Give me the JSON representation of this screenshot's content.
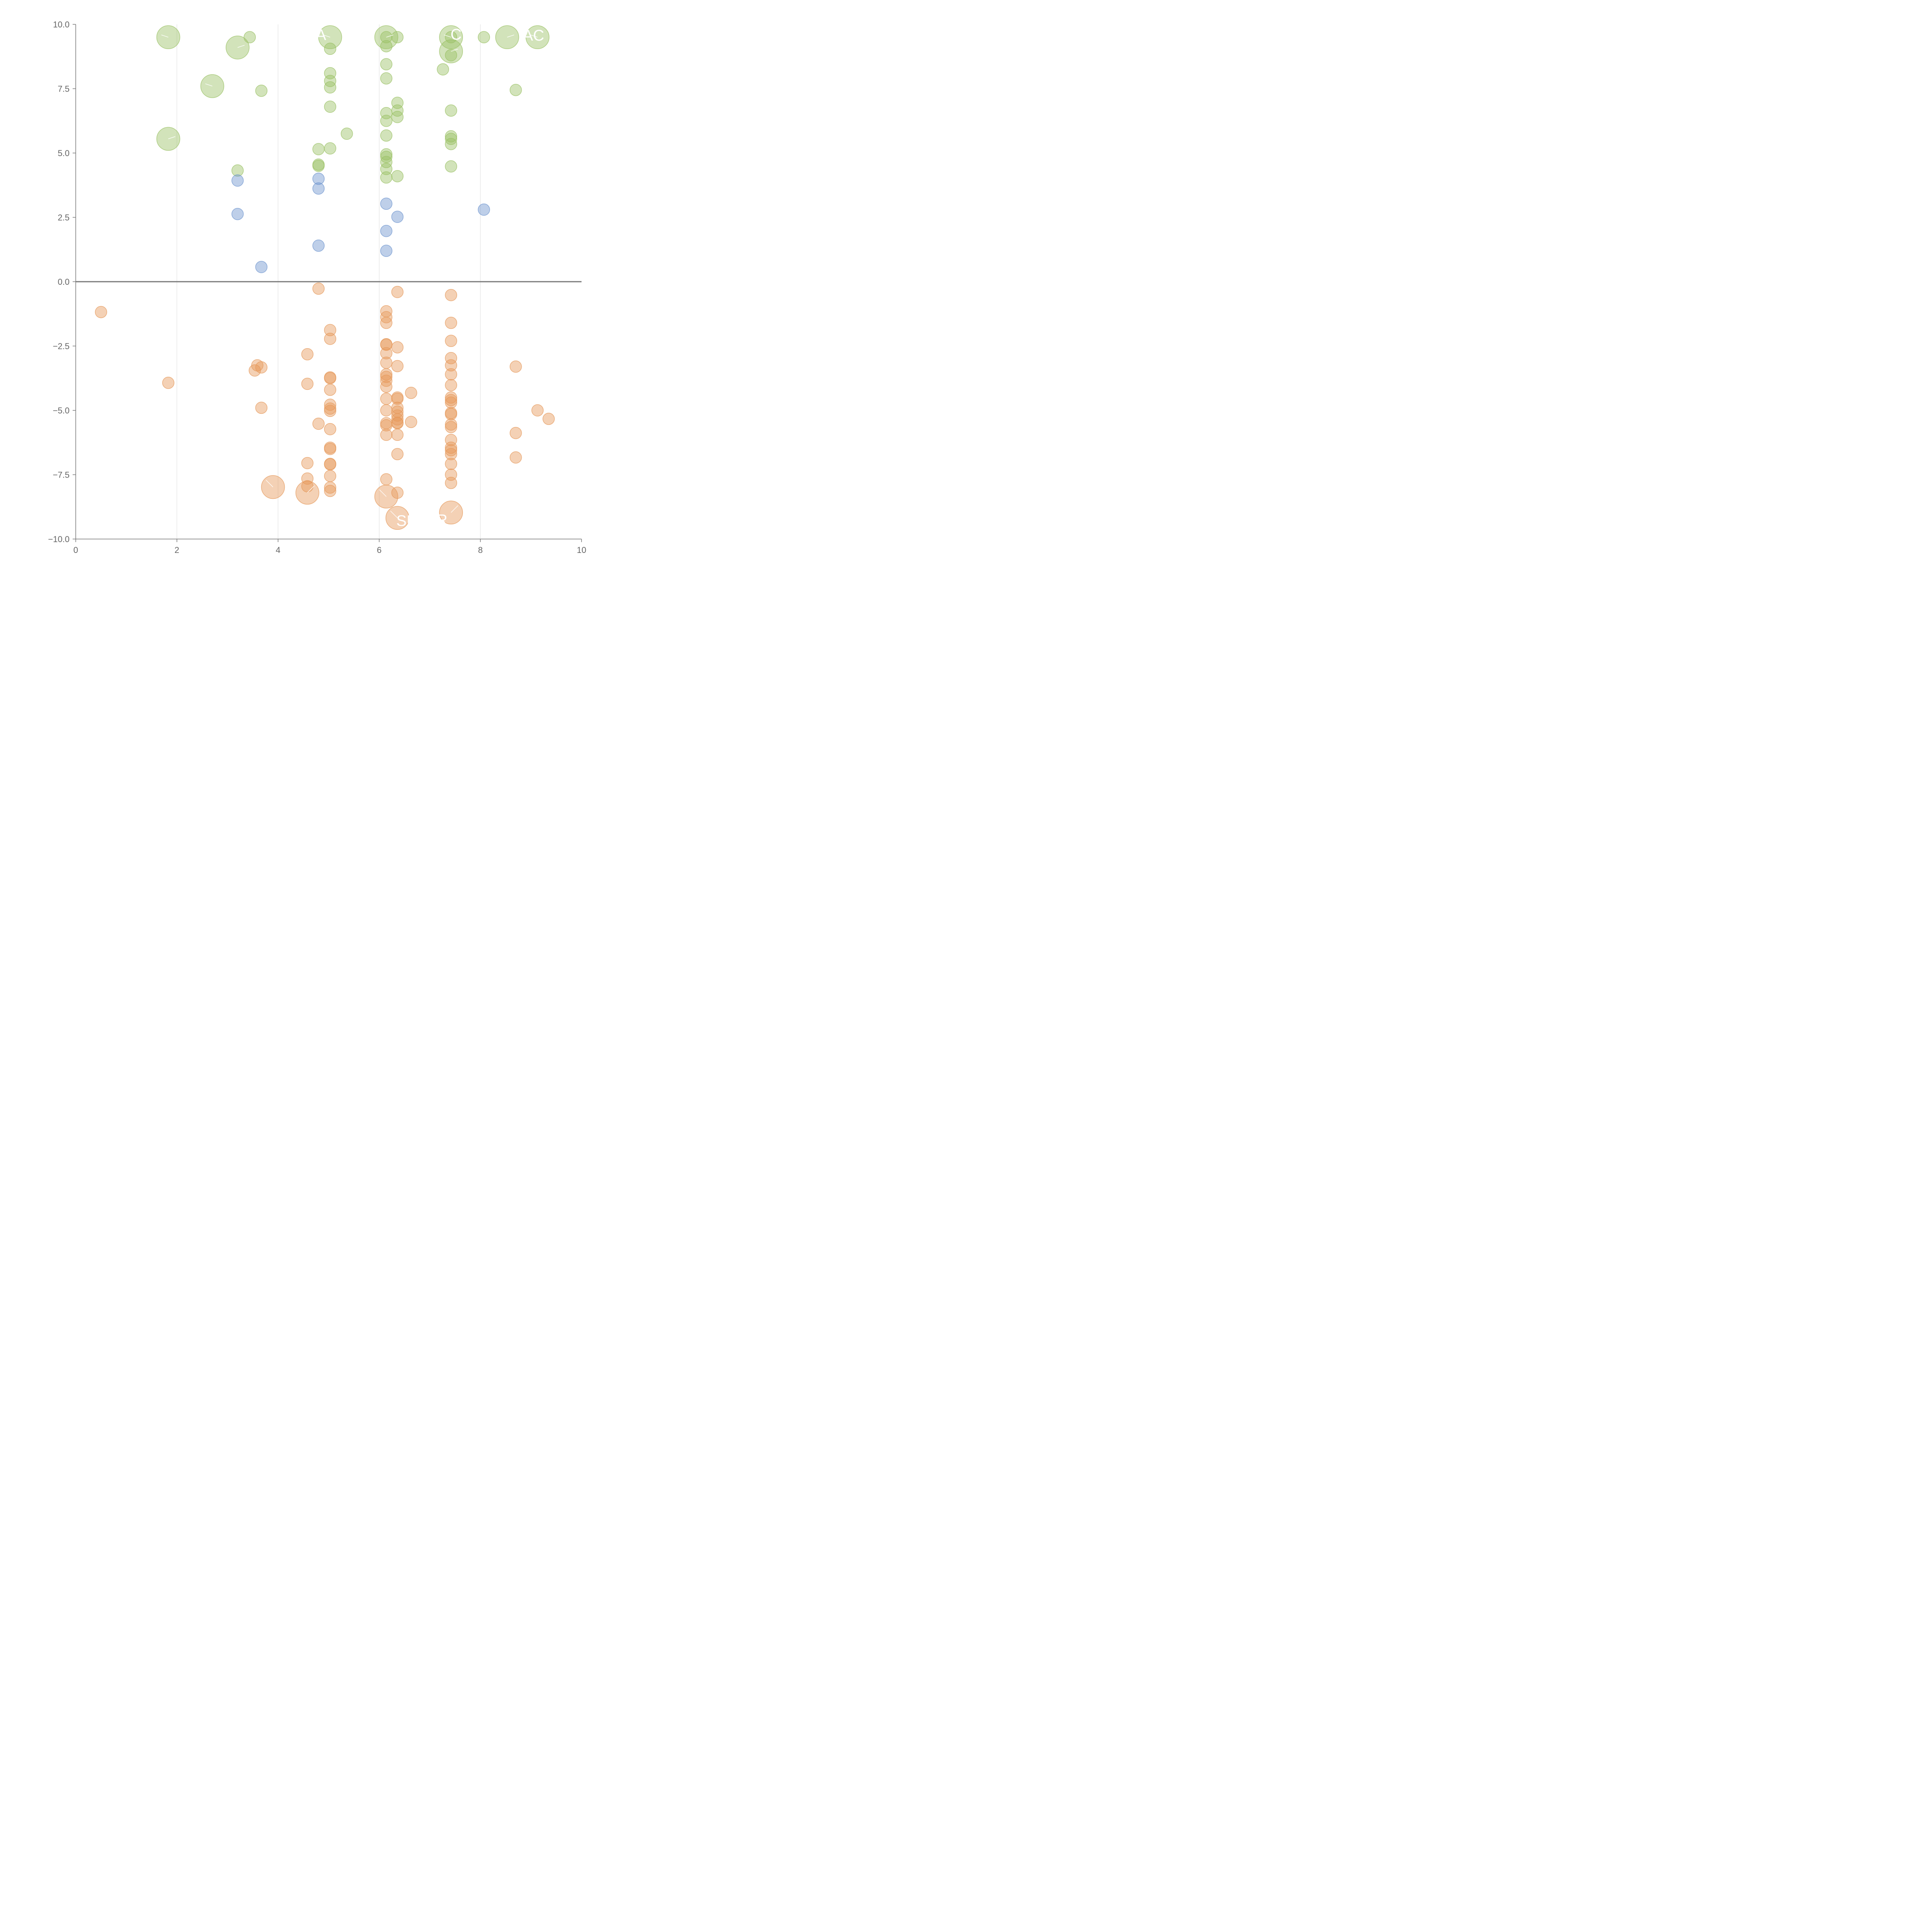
{
  "chart_data": {
    "type": "scatter",
    "title": "",
    "xlabel": "",
    "ylabel": "",
    "xlim": [
      0,
      10
    ],
    "ylim": [
      -10,
      10
    ],
    "x_ticks": [
      0,
      2,
      4,
      6,
      8,
      10
    ],
    "y_ticks": [
      -10,
      -7.5,
      -5,
      -2.5,
      0,
      2.5,
      5,
      7.5,
      10
    ],
    "x_tick_labels": [
      "0",
      "2",
      "4",
      "6",
      "8",
      "10"
    ],
    "y_tick_labels": [
      "−10.0",
      "−7.5",
      "−5.0",
      "−2.5",
      "0.0",
      "2.5",
      "5.0",
      "7.5",
      "10.0"
    ],
    "vertical_gridlines": [
      2,
      4,
      6,
      8
    ],
    "zero_line": 0,
    "colors": {
      "green": "#9bc265",
      "blue": "#6f95cf",
      "orange": "#e69a5c",
      "axis": "#777777",
      "grid": "#dddddd"
    },
    "series": [
      {
        "name": "green",
        "points": [
          [
            1.83,
            9.5,
            1
          ],
          [
            3.44,
            9.5,
            0
          ],
          [
            3.2,
            9.1,
            1
          ],
          [
            5.03,
            9.5,
            1
          ],
          [
            5.03,
            9.05,
            0
          ],
          [
            6.14,
            9.5,
            1
          ],
          [
            6.14,
            9.5,
            0
          ],
          [
            6.36,
            9.5,
            0
          ],
          [
            6.14,
            9.15,
            0
          ],
          [
            7.42,
            9.5,
            1
          ],
          [
            7.42,
            9.5,
            0
          ],
          [
            8.07,
            9.5,
            0
          ],
          [
            8.53,
            9.5,
            1
          ],
          [
            9.13,
            9.5,
            1
          ],
          [
            7.42,
            8.95,
            1
          ],
          [
            7.42,
            8.8,
            0
          ],
          [
            6.14,
            8.45,
            0
          ],
          [
            7.26,
            8.25,
            0
          ],
          [
            5.03,
            8.1,
            0
          ],
          [
            2.7,
            7.6,
            1
          ],
          [
            3.67,
            7.42,
            0
          ],
          [
            5.03,
            7.8,
            0
          ],
          [
            5.03,
            7.55,
            0
          ],
          [
            6.14,
            7.9,
            0
          ],
          [
            8.7,
            7.45,
            0
          ],
          [
            6.36,
            6.95,
            0
          ],
          [
            6.36,
            6.65,
            0
          ],
          [
            6.36,
            6.4,
            0
          ],
          [
            6.14,
            6.55,
            0
          ],
          [
            6.14,
            6.25,
            0
          ],
          [
            5.03,
            6.8,
            0
          ],
          [
            7.42,
            6.65,
            0
          ],
          [
            5.36,
            5.75,
            0
          ],
          [
            6.14,
            5.68,
            0
          ],
          [
            1.83,
            5.55,
            1
          ],
          [
            7.42,
            5.65,
            0
          ],
          [
            7.42,
            5.55,
            0
          ],
          [
            7.42,
            5.35,
            0
          ],
          [
            4.8,
            5.15,
            0
          ],
          [
            5.03,
            5.18,
            0
          ],
          [
            6.14,
            4.95,
            0
          ],
          [
            6.14,
            4.85,
            0
          ],
          [
            6.14,
            4.65,
            0
          ],
          [
            4.8,
            4.55,
            0
          ],
          [
            4.8,
            4.5,
            0
          ],
          [
            3.2,
            4.32,
            0
          ],
          [
            6.14,
            4.38,
            0
          ],
          [
            6.14,
            4.05,
            0
          ],
          [
            6.36,
            4.1,
            0
          ],
          [
            7.42,
            4.48,
            0
          ]
        ]
      },
      {
        "name": "blue",
        "points": [
          [
            3.2,
            3.93,
            0
          ],
          [
            4.8,
            4.0,
            0
          ],
          [
            4.8,
            3.62,
            0
          ],
          [
            3.2,
            2.63,
            0
          ],
          [
            6.14,
            3.03,
            0
          ],
          [
            6.36,
            2.52,
            0
          ],
          [
            8.07,
            2.8,
            0
          ],
          [
            6.14,
            1.97,
            0
          ],
          [
            4.8,
            1.4,
            0
          ],
          [
            6.14,
            1.2,
            0
          ],
          [
            3.67,
            0.57,
            0
          ]
        ]
      },
      {
        "name": "orange",
        "points": [
          [
            4.8,
            -0.27,
            0
          ],
          [
            6.36,
            -0.4,
            0
          ],
          [
            7.42,
            -0.52,
            0
          ],
          [
            0.5,
            -1.18,
            0
          ],
          [
            6.14,
            -1.15,
            0
          ],
          [
            6.14,
            -1.38,
            0
          ],
          [
            6.14,
            -1.6,
            0
          ],
          [
            7.42,
            -1.6,
            0
          ],
          [
            5.03,
            -1.88,
            0
          ],
          [
            5.03,
            -2.22,
            0
          ],
          [
            7.42,
            -2.3,
            0
          ],
          [
            6.14,
            -2.43,
            0
          ],
          [
            6.14,
            -2.45,
            0
          ],
          [
            6.36,
            -2.55,
            0
          ],
          [
            4.58,
            -2.82,
            0
          ],
          [
            6.14,
            -2.78,
            0
          ],
          [
            7.42,
            -2.97,
            0
          ],
          [
            3.59,
            -3.25,
            0
          ],
          [
            3.67,
            -3.33,
            0
          ],
          [
            3.54,
            -3.45,
            0
          ],
          [
            6.14,
            -3.15,
            0
          ],
          [
            6.36,
            -3.28,
            0
          ],
          [
            7.42,
            -3.25,
            0
          ],
          [
            8.7,
            -3.3,
            0
          ],
          [
            6.14,
            -3.6,
            0
          ],
          [
            6.14,
            -3.7,
            0
          ],
          [
            6.14,
            -3.85,
            0
          ],
          [
            7.42,
            -3.6,
            0
          ],
          [
            5.03,
            -3.72,
            0
          ],
          [
            5.03,
            -3.75,
            0
          ],
          [
            1.83,
            -3.93,
            0
          ],
          [
            4.58,
            -3.97,
            0
          ],
          [
            6.14,
            -4.08,
            0
          ],
          [
            7.42,
            -4.02,
            0
          ],
          [
            5.03,
            -4.2,
            0
          ],
          [
            6.63,
            -4.32,
            0
          ],
          [
            6.36,
            -4.5,
            0
          ],
          [
            6.36,
            -4.55,
            0
          ],
          [
            7.42,
            -4.5,
            0
          ],
          [
            7.42,
            -4.6,
            0
          ],
          [
            6.14,
            -4.55,
            0
          ],
          [
            7.42,
            -4.7,
            0
          ],
          [
            5.03,
            -4.78,
            0
          ],
          [
            3.67,
            -4.9,
            0
          ],
          [
            5.03,
            -4.93,
            0
          ],
          [
            5.03,
            -5.02,
            0
          ],
          [
            6.36,
            -4.9,
            0
          ],
          [
            6.14,
            -5.0,
            0
          ],
          [
            6.36,
            -5.05,
            0
          ],
          [
            6.36,
            -5.2,
            0
          ],
          [
            6.36,
            -5.35,
            0
          ],
          [
            7.42,
            -5.1,
            0
          ],
          [
            7.42,
            -5.15,
            0
          ],
          [
            9.13,
            -5.0,
            0
          ],
          [
            9.35,
            -5.33,
            0
          ],
          [
            6.36,
            -5.48,
            0
          ],
          [
            6.36,
            -5.5,
            0
          ],
          [
            6.63,
            -5.45,
            0
          ],
          [
            6.14,
            -5.5,
            0
          ],
          [
            6.14,
            -5.58,
            0
          ],
          [
            4.8,
            -5.52,
            0
          ],
          [
            7.42,
            -5.55,
            0
          ],
          [
            7.42,
            -5.65,
            0
          ],
          [
            5.03,
            -5.73,
            0
          ],
          [
            8.7,
            -5.88,
            0
          ],
          [
            6.14,
            -5.95,
            0
          ],
          [
            6.36,
            -5.95,
            0
          ],
          [
            7.42,
            -6.15,
            0
          ],
          [
            5.03,
            -6.45,
            0
          ],
          [
            5.03,
            -6.5,
            0
          ],
          [
            7.42,
            -6.45,
            0
          ],
          [
            7.42,
            -6.55,
            0
          ],
          [
            6.36,
            -6.7,
            0
          ],
          [
            7.42,
            -6.7,
            0
          ],
          [
            8.7,
            -6.83,
            0
          ],
          [
            4.58,
            -7.05,
            0
          ],
          [
            5.03,
            -7.08,
            0
          ],
          [
            5.03,
            -7.1,
            0
          ],
          [
            7.42,
            -7.08,
            0
          ],
          [
            5.03,
            -7.55,
            0
          ],
          [
            7.42,
            -7.5,
            0
          ],
          [
            4.58,
            -7.65,
            0
          ],
          [
            6.14,
            -7.68,
            0
          ],
          [
            7.42,
            -7.82,
            0
          ],
          [
            4.58,
            -7.95,
            0
          ],
          [
            5.03,
            -8.0,
            0
          ],
          [
            5.03,
            -8.13,
            0
          ],
          [
            3.9,
            -7.98,
            1
          ],
          [
            4.58,
            -8.2,
            1
          ],
          [
            6.14,
            -8.35,
            1
          ],
          [
            6.36,
            -8.2,
            0
          ],
          [
            7.42,
            -8.97,
            1
          ],
          [
            6.36,
            -9.18,
            1
          ]
        ]
      }
    ],
    "annotations": [
      {
        "text": "A",
        "x": 4.85,
        "y": 9.6
      },
      {
        "text": "C",
        "x": 7.52,
        "y": 9.62
      },
      {
        "text": "AC",
        "x": 9.05,
        "y": 9.58
      },
      {
        "text": "SH",
        "x": 6.55,
        "y": -9.28
      },
      {
        "text": "R",
        "x": 7.24,
        "y": -9.25
      }
    ]
  }
}
